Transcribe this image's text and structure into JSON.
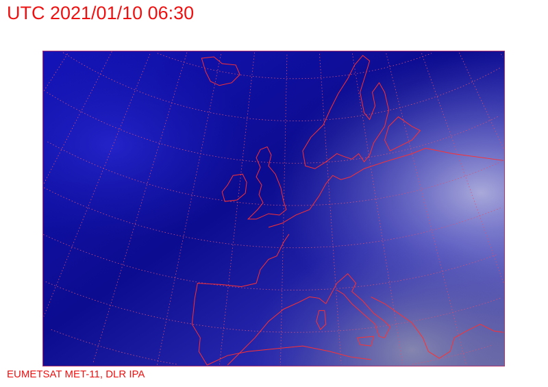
{
  "header": {
    "title": "UTC 2021/01/10 06:30"
  },
  "footer": {
    "credit": "EUMETSAT MET-11, DLR IPA"
  },
  "colors": {
    "text": "#ee1111",
    "coastline": "#ff3030",
    "graticule": "#e05070",
    "ocean": "#10109a",
    "cloud": "#8f8fd8"
  }
}
